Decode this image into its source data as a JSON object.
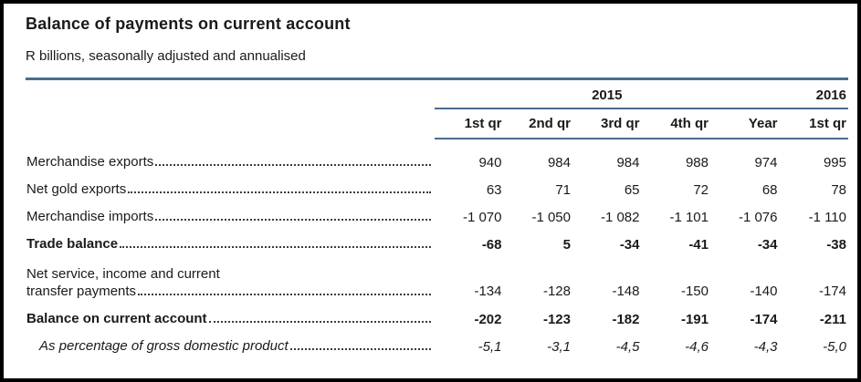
{
  "title": "Balance of payments on current account",
  "subtitle": "R billions, seasonally adjusted and annualised",
  "colors": {
    "rule": "#4a6c91",
    "text": "#1a1a1a"
  },
  "table": {
    "year_groups": [
      {
        "label": "2015",
        "span": 5
      },
      {
        "label": "2016",
        "span": 1
      }
    ],
    "columns": [
      "1st qr",
      "2nd qr",
      "3rd qr",
      "4th qr",
      "Year",
      "1st qr"
    ],
    "rows": [
      {
        "label_lines": [
          "Merchandise exports"
        ],
        "style": "normal",
        "values": [
          "940",
          "984",
          "984",
          "988",
          "974",
          "995"
        ]
      },
      {
        "label_lines": [
          "Net gold exports"
        ],
        "style": "normal",
        "values": [
          "63",
          "71",
          "65",
          "72",
          "68",
          "78"
        ]
      },
      {
        "label_lines": [
          "Merchandise imports"
        ],
        "style": "normal",
        "values": [
          "-1 070",
          "-1 050",
          "-1 082",
          "-1 101",
          "-1 076",
          "-1 110"
        ]
      },
      {
        "label_lines": [
          "Trade balance"
        ],
        "style": "bold",
        "values": [
          "-68",
          "5",
          "-34",
          "-41",
          "-34",
          "-38"
        ]
      },
      {
        "label_lines": [
          "Net service, income and current",
          "transfer payments"
        ],
        "style": "normal",
        "values": [
          "-134",
          "-128",
          "-148",
          "-150",
          "-140",
          "-174"
        ]
      },
      {
        "label_lines": [
          "Balance on current account"
        ],
        "style": "bold",
        "values": [
          "-202",
          "-123",
          "-182",
          "-191",
          "-174",
          "-211"
        ]
      },
      {
        "label_lines": [
          "As percentage of gross domestic product"
        ],
        "style": "italic",
        "values": [
          "-5,1",
          "-3,1",
          "-4,5",
          "-4,6",
          "-4,3",
          "-5,0"
        ]
      }
    ]
  }
}
